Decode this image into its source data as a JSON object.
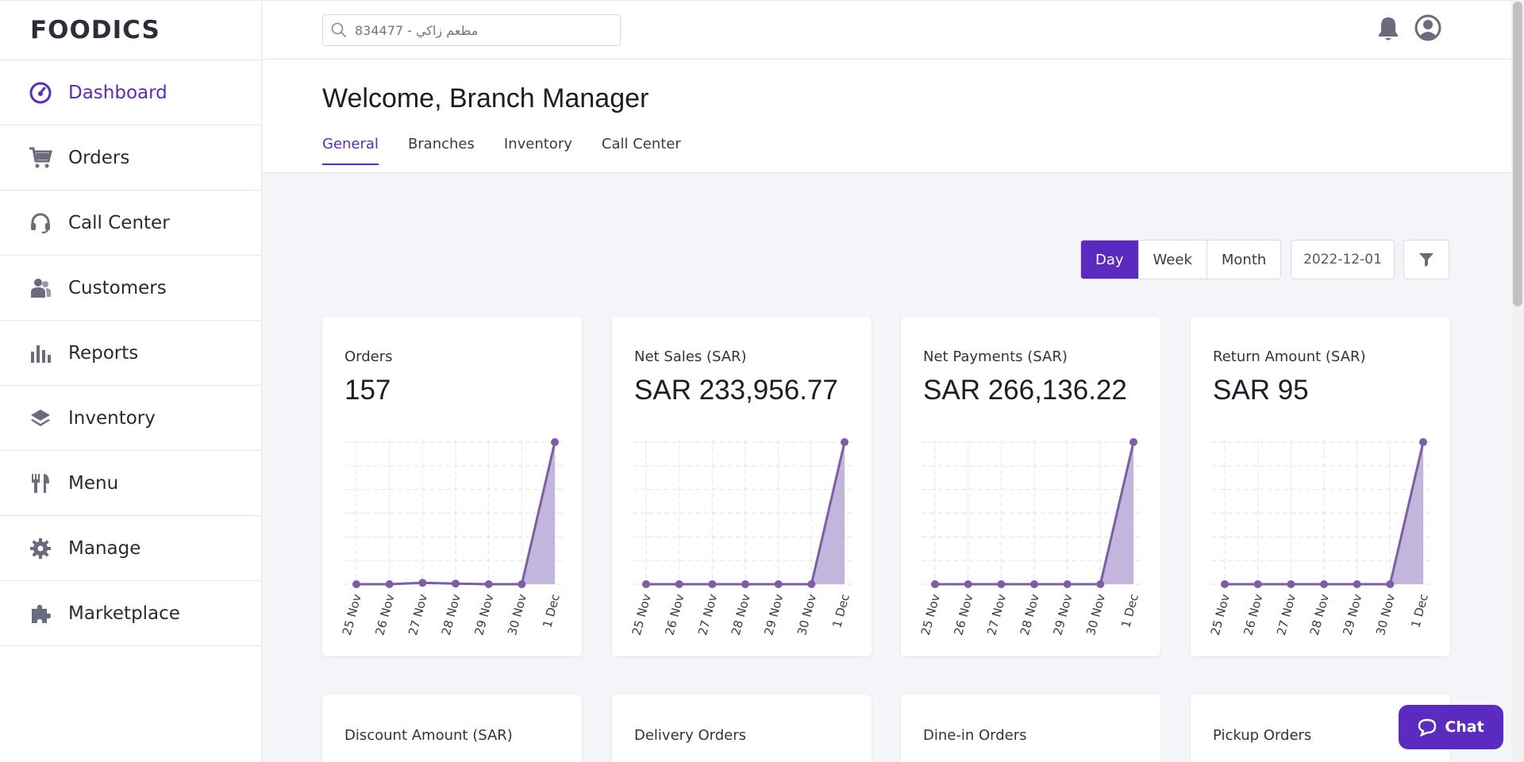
{
  "brand": {
    "logo": "FOODICS",
    "accent": "#5b2bc1"
  },
  "sidebar": {
    "items": [
      {
        "label": "Dashboard",
        "icon": "dashboard-gauge-icon",
        "active": true
      },
      {
        "label": "Orders",
        "icon": "cart-icon"
      },
      {
        "label": "Call Center",
        "icon": "headset-icon"
      },
      {
        "label": "Customers",
        "icon": "users-icon"
      },
      {
        "label": "Reports",
        "icon": "bar-chart-icon"
      },
      {
        "label": "Inventory",
        "icon": "layers-icon"
      },
      {
        "label": "Menu",
        "icon": "utensils-icon"
      },
      {
        "label": "Manage",
        "icon": "gear-icon"
      },
      {
        "label": "Marketplace",
        "icon": "puzzle-icon"
      }
    ]
  },
  "topbar": {
    "search_placeholder": "مطعم زاكي - 834477",
    "icons": [
      "search-icon",
      "bell-icon",
      "user-circle-icon"
    ]
  },
  "header": {
    "welcome": "Welcome, Branch Manager",
    "tabs": [
      {
        "label": "General",
        "active": true
      },
      {
        "label": "Branches"
      },
      {
        "label": "Inventory"
      },
      {
        "label": "Call Center"
      }
    ]
  },
  "controls": {
    "periods": [
      {
        "label": "Day",
        "active": true
      },
      {
        "label": "Week"
      },
      {
        "label": "Month"
      }
    ],
    "date": "2022-12-01",
    "filter_icon": "filter-icon"
  },
  "cards": [
    {
      "title": "Orders",
      "value": "157"
    },
    {
      "title": "Net Sales (SAR)",
      "value": "SAR 233,956.77"
    },
    {
      "title": "Net Payments (SAR)",
      "value": "SAR 266,136.22"
    },
    {
      "title": "Return Amount (SAR)",
      "value": "SAR 95"
    }
  ],
  "cards_row2": [
    {
      "title": "Discount Amount (SAR)"
    },
    {
      "title": "Delivery Orders"
    },
    {
      "title": "Dine-in Orders"
    },
    {
      "title": "Pickup Orders"
    }
  ],
  "chart_data": [
    {
      "type": "area",
      "x": [
        "25 Nov",
        "26 Nov",
        "27 Nov",
        "28 Nov",
        "29 Nov",
        "30 Nov",
        "1 Dec"
      ],
      "series": [
        {
          "values": [
            0,
            0,
            1.5,
            0.7,
            0,
            0,
            157
          ]
        }
      ],
      "color": "#7b5ea7"
    },
    {
      "type": "area",
      "x": [
        "25 Nov",
        "26 Nov",
        "27 Nov",
        "28 Nov",
        "29 Nov",
        "30 Nov",
        "1 Dec"
      ],
      "series": [
        {
          "values": [
            0,
            0,
            0,
            0,
            0,
            0,
            233956.77
          ]
        }
      ],
      "color": "#7b5ea7"
    },
    {
      "type": "area",
      "x": [
        "25 Nov",
        "26 Nov",
        "27 Nov",
        "28 Nov",
        "29 Nov",
        "30 Nov",
        "1 Dec"
      ],
      "series": [
        {
          "values": [
            0,
            0,
            0,
            0,
            0,
            0,
            266136.22
          ]
        }
      ],
      "color": "#7b5ea7"
    },
    {
      "type": "area",
      "x": [
        "25 Nov",
        "26 Nov",
        "27 Nov",
        "28 Nov",
        "29 Nov",
        "30 Nov",
        "1 Dec"
      ],
      "series": [
        {
          "values": [
            0,
            0,
            0,
            0,
            0,
            0,
            95
          ]
        }
      ],
      "color": "#7b5ea7"
    }
  ],
  "chat": {
    "label": "Chat",
    "icon": "chat-bubble-icon"
  }
}
